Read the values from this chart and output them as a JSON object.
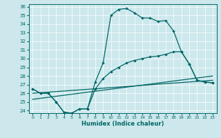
{
  "xlabel": "Humidex (Indice chaleur)",
  "bg_color": "#cce8ec",
  "grid_color": "#ffffff",
  "line_color": "#006666",
  "xlim": [
    -0.5,
    23.5
  ],
  "ylim": [
    23.7,
    36.3
  ],
  "yticks": [
    24,
    25,
    26,
    27,
    28,
    29,
    30,
    31,
    32,
    33,
    34,
    35,
    36
  ],
  "xticks": [
    0,
    1,
    2,
    3,
    4,
    5,
    6,
    7,
    8,
    9,
    10,
    11,
    12,
    13,
    14,
    15,
    16,
    17,
    18,
    19,
    20,
    21,
    22,
    23
  ],
  "line1_x": [
    0,
    1,
    2,
    3,
    4,
    5,
    6,
    7,
    8,
    9,
    10,
    11,
    12,
    13,
    14,
    15,
    16,
    17,
    18,
    19,
    20,
    21,
    22,
    23
  ],
  "line1_y": [
    26.5,
    26.0,
    26.0,
    25.0,
    23.8,
    23.7,
    24.2,
    24.2,
    27.3,
    29.5,
    35.0,
    35.7,
    35.8,
    35.3,
    34.7,
    34.7,
    34.3,
    34.4,
    33.2,
    30.8,
    29.4,
    27.5,
    27.3,
    27.2
  ],
  "line2_x": [
    0,
    1,
    2,
    3,
    4,
    5,
    6,
    7,
    8,
    9,
    10,
    11,
    12,
    13,
    14,
    15,
    16,
    17,
    18,
    19,
    20,
    21,
    22,
    23
  ],
  "line2_y": [
    26.5,
    26.0,
    26.0,
    25.0,
    23.8,
    23.7,
    24.2,
    24.2,
    26.5,
    27.7,
    28.5,
    29.0,
    29.5,
    29.8,
    30.0,
    30.2,
    30.3,
    30.5,
    30.8,
    30.8,
    29.4,
    27.5,
    27.3,
    27.2
  ],
  "line3_x": [
    0,
    23
  ],
  "line3_y": [
    26.0,
    27.5
  ],
  "line4_x": [
    0,
    23
  ],
  "line4_y": [
    25.3,
    28.0
  ]
}
